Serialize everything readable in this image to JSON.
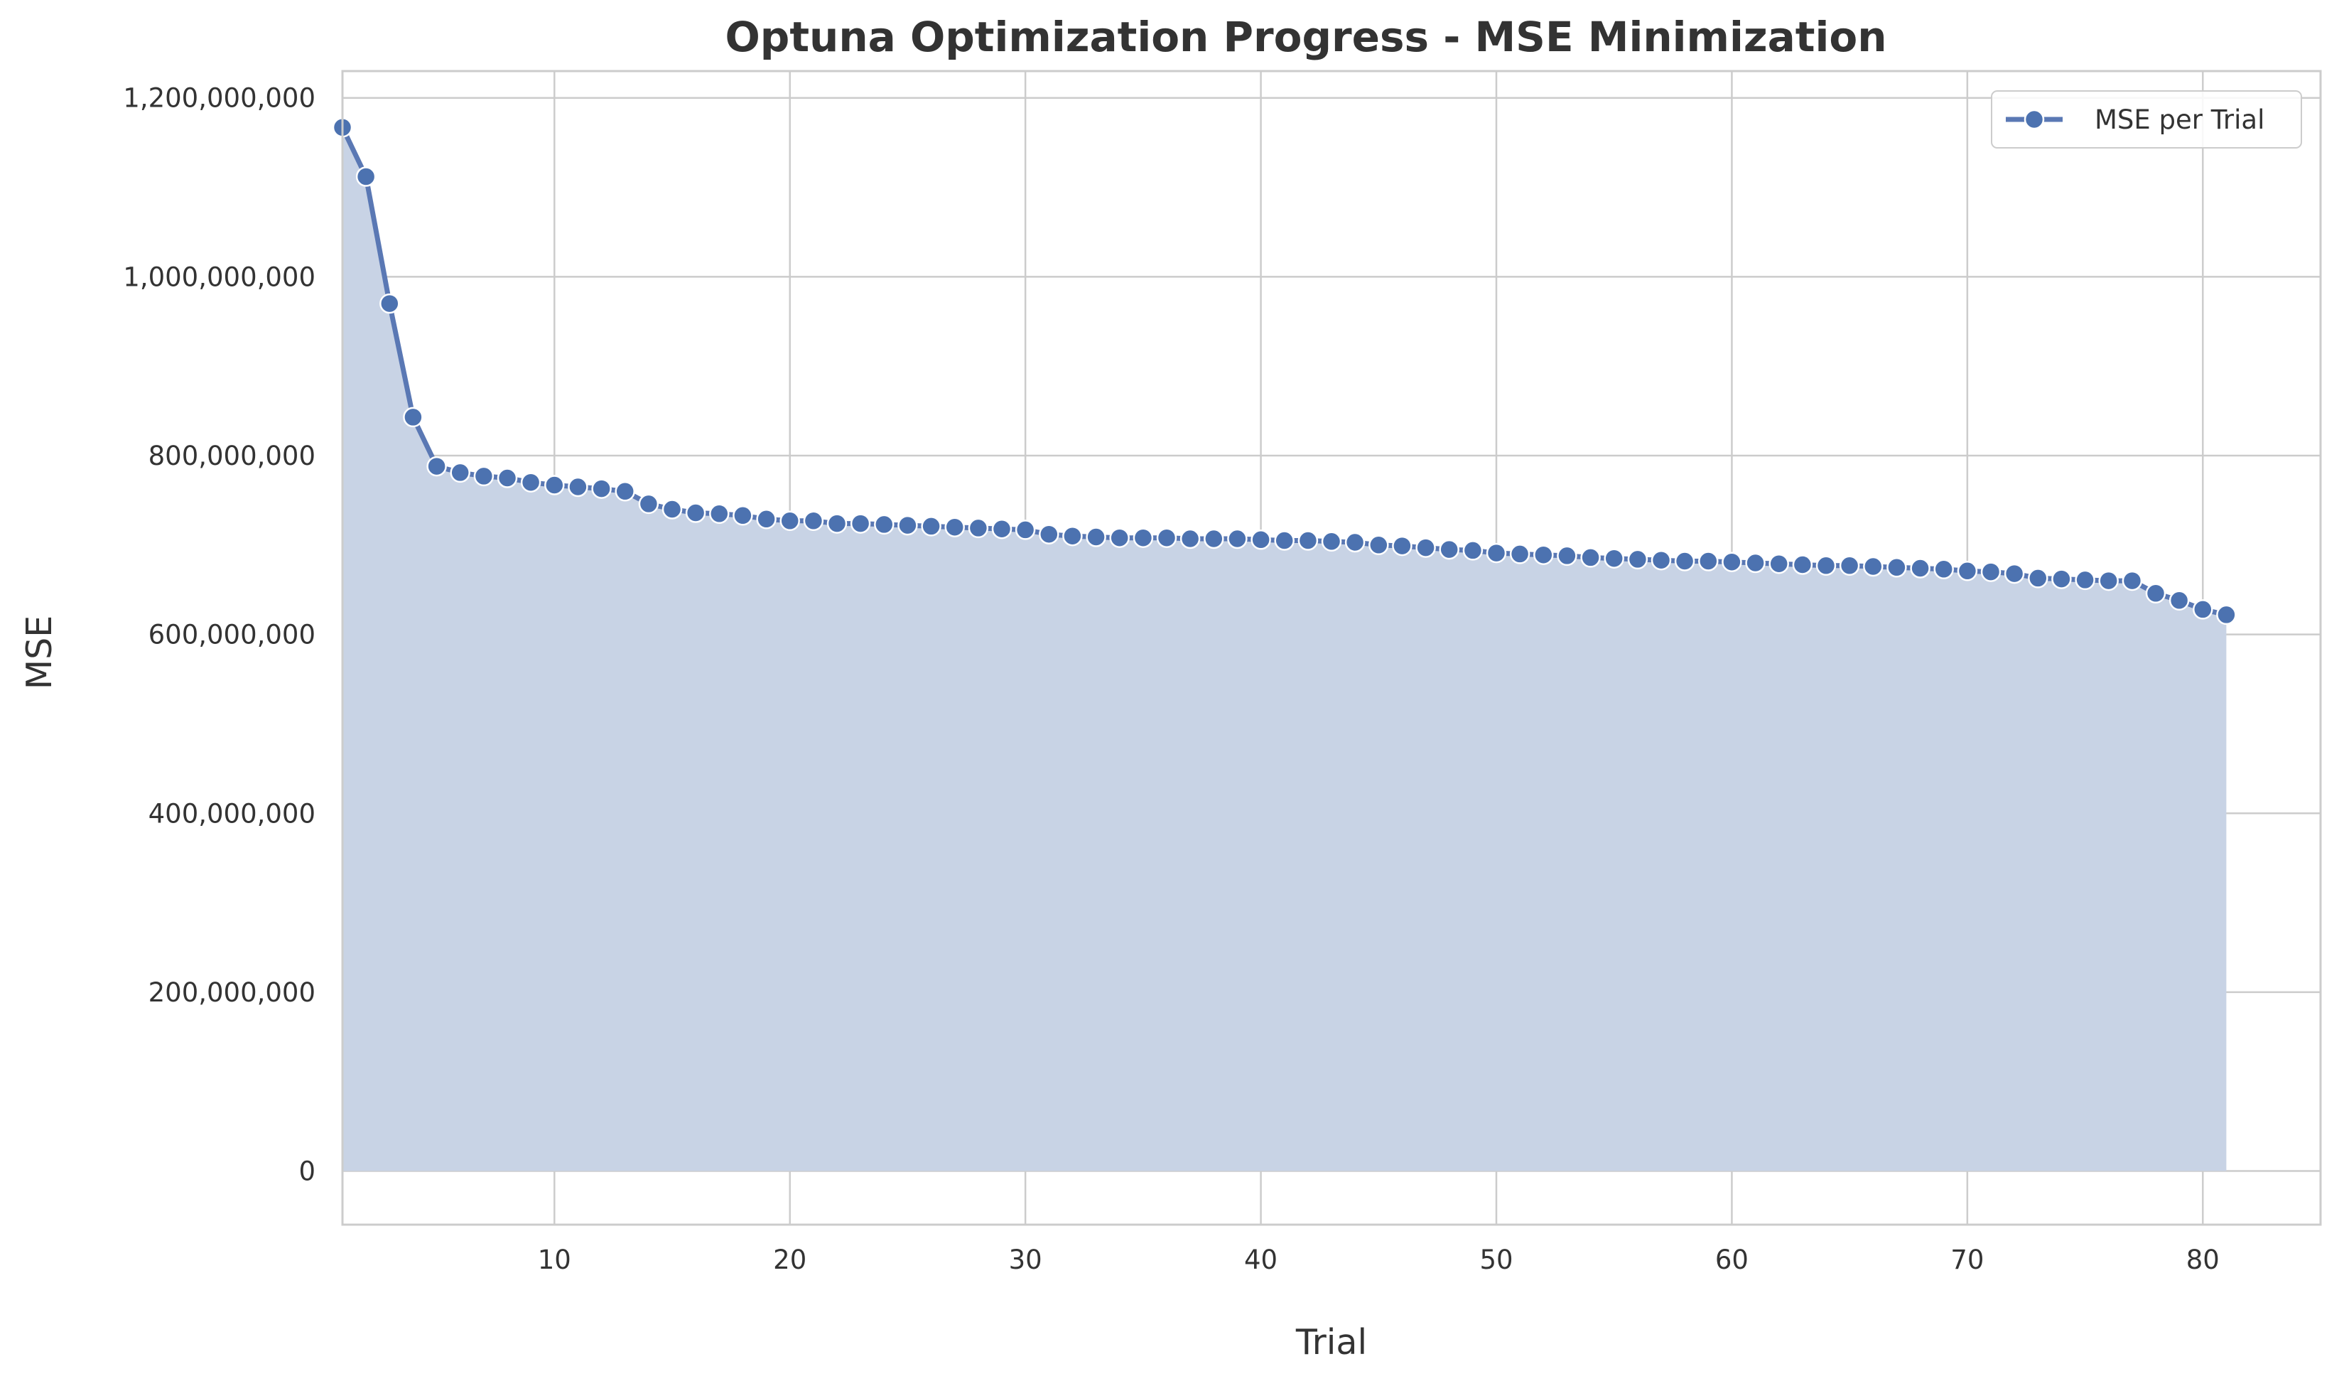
{
  "chart_data": {
    "type": "line",
    "title": "Optuna Optimization Progress - MSE Minimization",
    "xlabel": "Trial",
    "ylabel": "MSE",
    "xlim": [
      1,
      85
    ],
    "ylim": [
      -60000000,
      1230000000
    ],
    "xticks": [
      10,
      20,
      30,
      40,
      50,
      60,
      70,
      80
    ],
    "yticks": [
      0,
      200000000,
      400000000,
      600000000,
      800000000,
      1000000000,
      1200000000
    ],
    "ytick_labels": [
      "0",
      "200,000,000",
      "400,000,000",
      "600,000,000",
      "800,000,000",
      "1,000,000,000",
      "1,200,000,000"
    ],
    "grid": true,
    "legend_position": "top-right",
    "fill_under": true,
    "colors": {
      "line": "#5a78b4",
      "marker": "#4c72b0",
      "fill": "#c8d3e5",
      "grid": "#cccccc"
    },
    "series": [
      {
        "name": "MSE per Trial",
        "x": [
          1,
          2,
          3,
          4,
          5,
          6,
          7,
          8,
          9,
          10,
          11,
          12,
          13,
          14,
          15,
          16,
          17,
          18,
          19,
          20,
          21,
          22,
          23,
          24,
          25,
          26,
          27,
          28,
          29,
          30,
          31,
          32,
          33,
          34,
          35,
          36,
          37,
          38,
          39,
          40,
          41,
          42,
          43,
          44,
          45,
          46,
          47,
          48,
          49,
          50,
          51,
          52,
          53,
          54,
          55,
          56,
          57,
          58,
          59,
          60,
          61,
          62,
          63,
          64,
          65,
          66,
          67,
          68,
          69,
          70,
          71,
          72,
          73,
          74,
          75,
          76,
          77,
          78,
          79,
          80,
          81
        ],
        "y": [
          1167000000,
          1112000000,
          970000000,
          843000000,
          788000000,
          781000000,
          777000000,
          775000000,
          770000000,
          767000000,
          765000000,
          763000000,
          760000000,
          746000000,
          740000000,
          736000000,
          735000000,
          733000000,
          729000000,
          727000000,
          727000000,
          724000000,
          724000000,
          723000000,
          722000000,
          721000000,
          720000000,
          719000000,
          718000000,
          717000000,
          712000000,
          710000000,
          709000000,
          708000000,
          708000000,
          708000000,
          707000000,
          707000000,
          707000000,
          706000000,
          705000000,
          705000000,
          704000000,
          703000000,
          700000000,
          699000000,
          697000000,
          695000000,
          694000000,
          691000000,
          690000000,
          689000000,
          688000000,
          686000000,
          685000000,
          684000000,
          683000000,
          682000000,
          682000000,
          681000000,
          680000000,
          679000000,
          678000000,
          677000000,
          677000000,
          676000000,
          675000000,
          674000000,
          673000000,
          671000000,
          670000000,
          668000000,
          663000000,
          662000000,
          661000000,
          660000000,
          660000000,
          646000000,
          638000000,
          628000000,
          622000000
        ]
      }
    ]
  }
}
